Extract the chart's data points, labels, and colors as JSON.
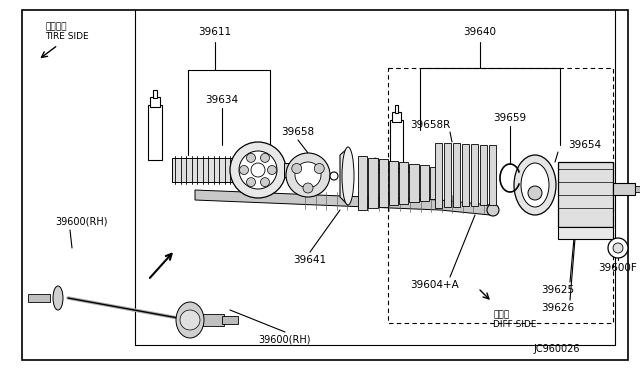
{
  "bg_color": "#ffffff",
  "line_color": "#000000",
  "title_bottom_right": "JC960026",
  "tire_side_jp": "タイヤ側",
  "tire_side_en": "TIRE SIDE",
  "diff_side_jp": "デフ側",
  "diff_side_en": "DIFF SIDE",
  "figsize": [
    6.4,
    3.72
  ],
  "dpi": 100
}
